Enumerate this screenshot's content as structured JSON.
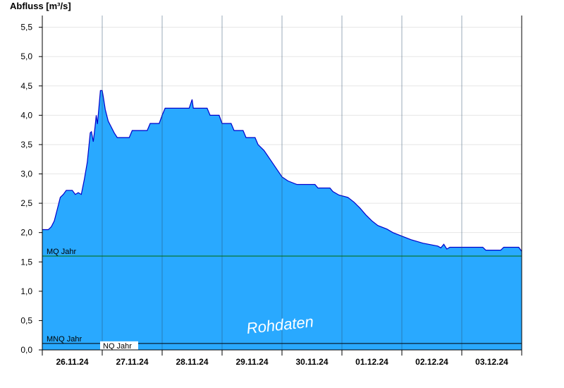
{
  "chart_data": {
    "type": "area",
    "ylabel": "Abfluss [m³/s]",
    "ylim": [
      0,
      5.7
    ],
    "yticks": [
      "0,0",
      "0,5",
      "1,0",
      "1,5",
      "2,0",
      "2,5",
      "3,0",
      "3,5",
      "4,0",
      "4,5",
      "5,0",
      "5,5"
    ],
    "ytick_values": [
      0,
      0.5,
      1,
      1.5,
      2,
      2.5,
      3,
      3.5,
      4,
      4.5,
      5,
      5.5
    ],
    "xlim_days": [
      0,
      8
    ],
    "day_labels": [
      "26.11.24",
      "27.11.24",
      "28.11.24",
      "29.11.24",
      "30.11.24",
      "01.12.24",
      "02.12.24",
      "03.12.24"
    ],
    "grid": "vertical day separators + horizontal light gridlines",
    "fill_color": "#29a9ff",
    "line_color": "#0000cc",
    "points": [
      [
        0.0,
        2.05
      ],
      [
        0.1,
        2.05
      ],
      [
        0.15,
        2.1
      ],
      [
        0.2,
        2.2
      ],
      [
        0.25,
        2.4
      ],
      [
        0.3,
        2.6
      ],
      [
        0.35,
        2.65
      ],
      [
        0.4,
        2.72
      ],
      [
        0.5,
        2.72
      ],
      [
        0.55,
        2.65
      ],
      [
        0.6,
        2.68
      ],
      [
        0.65,
        2.65
      ],
      [
        0.7,
        2.9
      ],
      [
        0.75,
        3.2
      ],
      [
        0.8,
        3.7
      ],
      [
        0.82,
        3.72
      ],
      [
        0.85,
        3.55
      ],
      [
        0.88,
        3.8
      ],
      [
        0.9,
        4.0
      ],
      [
        0.92,
        3.85
      ],
      [
        0.95,
        4.2
      ],
      [
        0.97,
        4.42
      ],
      [
        1.0,
        4.42
      ],
      [
        1.02,
        4.3
      ],
      [
        1.05,
        4.1
      ],
      [
        1.1,
        3.9
      ],
      [
        1.15,
        3.8
      ],
      [
        1.2,
        3.7
      ],
      [
        1.25,
        3.62
      ],
      [
        1.45,
        3.62
      ],
      [
        1.5,
        3.74
      ],
      [
        1.75,
        3.74
      ],
      [
        1.8,
        3.86
      ],
      [
        1.95,
        3.86
      ],
      [
        2.0,
        4.0
      ],
      [
        2.05,
        4.12
      ],
      [
        2.45,
        4.12
      ],
      [
        2.5,
        4.27
      ],
      [
        2.52,
        4.12
      ],
      [
        2.75,
        4.12
      ],
      [
        2.8,
        4.0
      ],
      [
        2.95,
        4.0
      ],
      [
        3.0,
        3.86
      ],
      [
        3.15,
        3.86
      ],
      [
        3.2,
        3.74
      ],
      [
        3.35,
        3.74
      ],
      [
        3.4,
        3.62
      ],
      [
        3.55,
        3.62
      ],
      [
        3.6,
        3.5
      ],
      [
        3.7,
        3.4
      ],
      [
        3.8,
        3.25
      ],
      [
        3.9,
        3.1
      ],
      [
        4.0,
        2.95
      ],
      [
        4.1,
        2.88
      ],
      [
        4.25,
        2.82
      ],
      [
        4.55,
        2.82
      ],
      [
        4.6,
        2.76
      ],
      [
        4.8,
        2.76
      ],
      [
        4.85,
        2.7
      ],
      [
        4.95,
        2.64
      ],
      [
        5.1,
        2.6
      ],
      [
        5.2,
        2.52
      ],
      [
        5.3,
        2.42
      ],
      [
        5.4,
        2.3
      ],
      [
        5.5,
        2.2
      ],
      [
        5.6,
        2.12
      ],
      [
        5.75,
        2.06
      ],
      [
        5.85,
        2.0
      ],
      [
        6.0,
        1.94
      ],
      [
        6.15,
        1.88
      ],
      [
        6.35,
        1.82
      ],
      [
        6.6,
        1.77
      ],
      [
        6.65,
        1.74
      ],
      [
        6.7,
        1.8
      ],
      [
        6.75,
        1.72
      ],
      [
        6.8,
        1.75
      ],
      [
        7.0,
        1.75
      ],
      [
        7.35,
        1.75
      ],
      [
        7.4,
        1.7
      ],
      [
        7.65,
        1.7
      ],
      [
        7.7,
        1.75
      ],
      [
        7.95,
        1.75
      ],
      [
        8.0,
        1.68
      ]
    ],
    "reference_lines": [
      {
        "label": "MQ Jahr",
        "value": 1.6,
        "color": "#006b00"
      },
      {
        "label": "MNQ Jahr",
        "value": 0.11,
        "color": "#000000"
      },
      {
        "label": "NQ Jahr",
        "value": 0.11,
        "color": "#000000"
      }
    ],
    "watermark": "Rohdaten"
  }
}
